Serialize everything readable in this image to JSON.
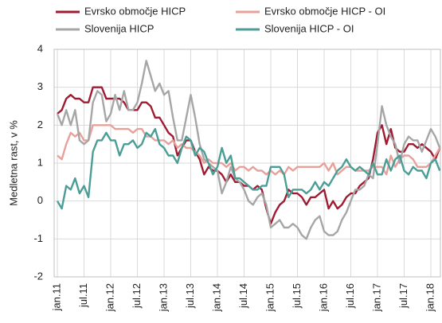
{
  "chart_data": {
    "type": "line",
    "y_label": "Medletna rast, v %",
    "categories": [
      "jan.11",
      null,
      null,
      null,
      null,
      null,
      "jul.11",
      null,
      null,
      null,
      null,
      null,
      "jan.12",
      null,
      null,
      null,
      null,
      null,
      "jul.12",
      null,
      null,
      null,
      null,
      null,
      "jan.13",
      null,
      null,
      null,
      null,
      null,
      "jul.13",
      null,
      null,
      null,
      null,
      null,
      "jan.14",
      null,
      null,
      null,
      null,
      null,
      "jul.14",
      null,
      null,
      null,
      null,
      null,
      "jan.15",
      null,
      null,
      null,
      null,
      null,
      "jul.15",
      null,
      null,
      null,
      null,
      null,
      "jan.16",
      null,
      null,
      null,
      null,
      null,
      "jul.16",
      null,
      null,
      null,
      null,
      null,
      "jan.17",
      null,
      null,
      null,
      null,
      null,
      "jul.17",
      null,
      null,
      null,
      null,
      null,
      "jan.18",
      null,
      null
    ],
    "series": [
      {
        "name": "Evrsko območje HICP",
        "color": "#9e1b32",
        "values": [
          2.3,
          2.4,
          2.7,
          2.8,
          2.7,
          2.7,
          2.6,
          2.6,
          3.0,
          3.0,
          3.0,
          2.7,
          2.7,
          2.7,
          2.7,
          2.6,
          2.4,
          2.4,
          2.4,
          2.6,
          2.6,
          2.5,
          2.2,
          2.2,
          2.0,
          1.8,
          1.7,
          1.2,
          1.4,
          1.6,
          1.6,
          1.3,
          1.1,
          0.7,
          0.9,
          0.8,
          0.8,
          0.7,
          0.5,
          0.7,
          0.5,
          0.5,
          0.4,
          0.4,
          0.3,
          0.4,
          0.3,
          -0.2,
          -0.6,
          -0.3,
          -0.1,
          0.0,
          0.3,
          0.2,
          0.2,
          0.1,
          -0.1,
          0.1,
          0.1,
          0.2,
          0.3,
          -0.2,
          0.0,
          -0.2,
          -0.1,
          0.1,
          0.2,
          0.2,
          0.4,
          0.5,
          0.6,
          1.1,
          1.8,
          2.0,
          1.5,
          1.9,
          1.4,
          1.3,
          1.3,
          1.5,
          1.5,
          1.4,
          1.5,
          1.4,
          1.3,
          1.1,
          1.4
        ]
      },
      {
        "name": "Evrsko območje HICP - OI",
        "color": "#e8a09a",
        "values": [
          1.2,
          1.1,
          1.5,
          1.8,
          1.7,
          1.8,
          1.6,
          1.6,
          2.0,
          2.0,
          2.0,
          2.0,
          2.0,
          1.9,
          1.9,
          1.9,
          1.9,
          1.8,
          1.9,
          1.9,
          1.7,
          1.7,
          1.6,
          1.6,
          1.6,
          1.5,
          1.6,
          1.4,
          1.5,
          1.4,
          1.4,
          1.3,
          1.2,
          1.0,
          1.1,
          1.0,
          1.0,
          1.0,
          0.9,
          1.0,
          0.8,
          0.9,
          0.9,
          0.8,
          0.9,
          0.8,
          0.8,
          0.7,
          0.8,
          0.7,
          0.8,
          0.7,
          0.9,
          0.8,
          0.9,
          0.9,
          0.9,
          0.9,
          0.9,
          0.9,
          1.0,
          0.8,
          1.0,
          0.7,
          0.8,
          0.9,
          0.9,
          0.8,
          0.8,
          0.8,
          0.8,
          0.9,
          0.9,
          0.9,
          0.7,
          1.2,
          0.9,
          1.1,
          1.2,
          1.2,
          1.1,
          0.9,
          0.9,
          0.9,
          1.0,
          1.2,
          1.4
        ]
      },
      {
        "name": "Slovenija HICP",
        "color": "#a6a6a6",
        "values": [
          2.3,
          2.0,
          2.4,
          2.0,
          2.4,
          1.6,
          1.5,
          1.6,
          2.6,
          2.9,
          2.8,
          2.1,
          2.3,
          2.8,
          2.4,
          2.9,
          2.4,
          2.4,
          2.6,
          3.1,
          3.7,
          3.3,
          2.9,
          3.1,
          2.8,
          2.9,
          2.2,
          1.6,
          1.6,
          2.2,
          2.8,
          2.2,
          1.5,
          1.1,
          1.0,
          0.9,
          0.8,
          0.2,
          0.5,
          0.9,
          0.6,
          0.5,
          0.3,
          0.0,
          -0.1,
          0.1,
          0.2,
          -0.1,
          -0.7,
          -0.6,
          -0.5,
          -0.7,
          -0.7,
          -0.6,
          -0.7,
          -0.9,
          -1.0,
          -0.7,
          -0.5,
          -0.4,
          -0.8,
          -0.9,
          -0.9,
          -0.8,
          -0.5,
          -0.3,
          0.0,
          0.3,
          0.3,
          0.4,
          0.7,
          0.6,
          1.5,
          2.5,
          2.0,
          1.7,
          1.5,
          1.0,
          1.5,
          1.7,
          1.6,
          1.6,
          1.3,
          1.6,
          1.9,
          1.7,
          1.4
        ]
      },
      {
        "name": "Slovenija HICP - OI",
        "color": "#4a9e96",
        "values": [
          0.0,
          -0.2,
          0.4,
          0.3,
          0.6,
          0.2,
          0.4,
          0.1,
          1.3,
          1.6,
          1.6,
          1.8,
          1.6,
          1.6,
          1.2,
          1.5,
          1.5,
          1.6,
          1.4,
          1.5,
          1.8,
          1.7,
          1.9,
          1.5,
          1.4,
          1.2,
          1.2,
          1.0,
          1.4,
          1.7,
          1.6,
          1.2,
          1.4,
          1.3,
          1.0,
          0.7,
          0.9,
          1.4,
          1.0,
          1.2,
          0.6,
          0.6,
          0.5,
          0.4,
          0.3,
          0.3,
          0.4,
          0.4,
          0.9,
          0.9,
          0.9,
          0.7,
          0.1,
          0.3,
          0.3,
          0.3,
          0.2,
          0.3,
          0.5,
          0.3,
          0.5,
          0.4,
          0.6,
          0.8,
          0.9,
          1.1,
          0.9,
          0.8,
          0.9,
          0.8,
          0.7,
          1.0,
          0.7,
          0.7,
          1.1,
          0.8,
          1.1,
          1.2,
          0.8,
          0.7,
          0.9,
          0.8,
          0.8,
          0.6,
          1.0,
          1.1,
          0.8
        ]
      }
    ],
    "ylim": [
      -2,
      4
    ],
    "yticks": [
      -2,
      -1,
      0,
      1,
      2,
      3,
      4
    ],
    "grid": true
  }
}
